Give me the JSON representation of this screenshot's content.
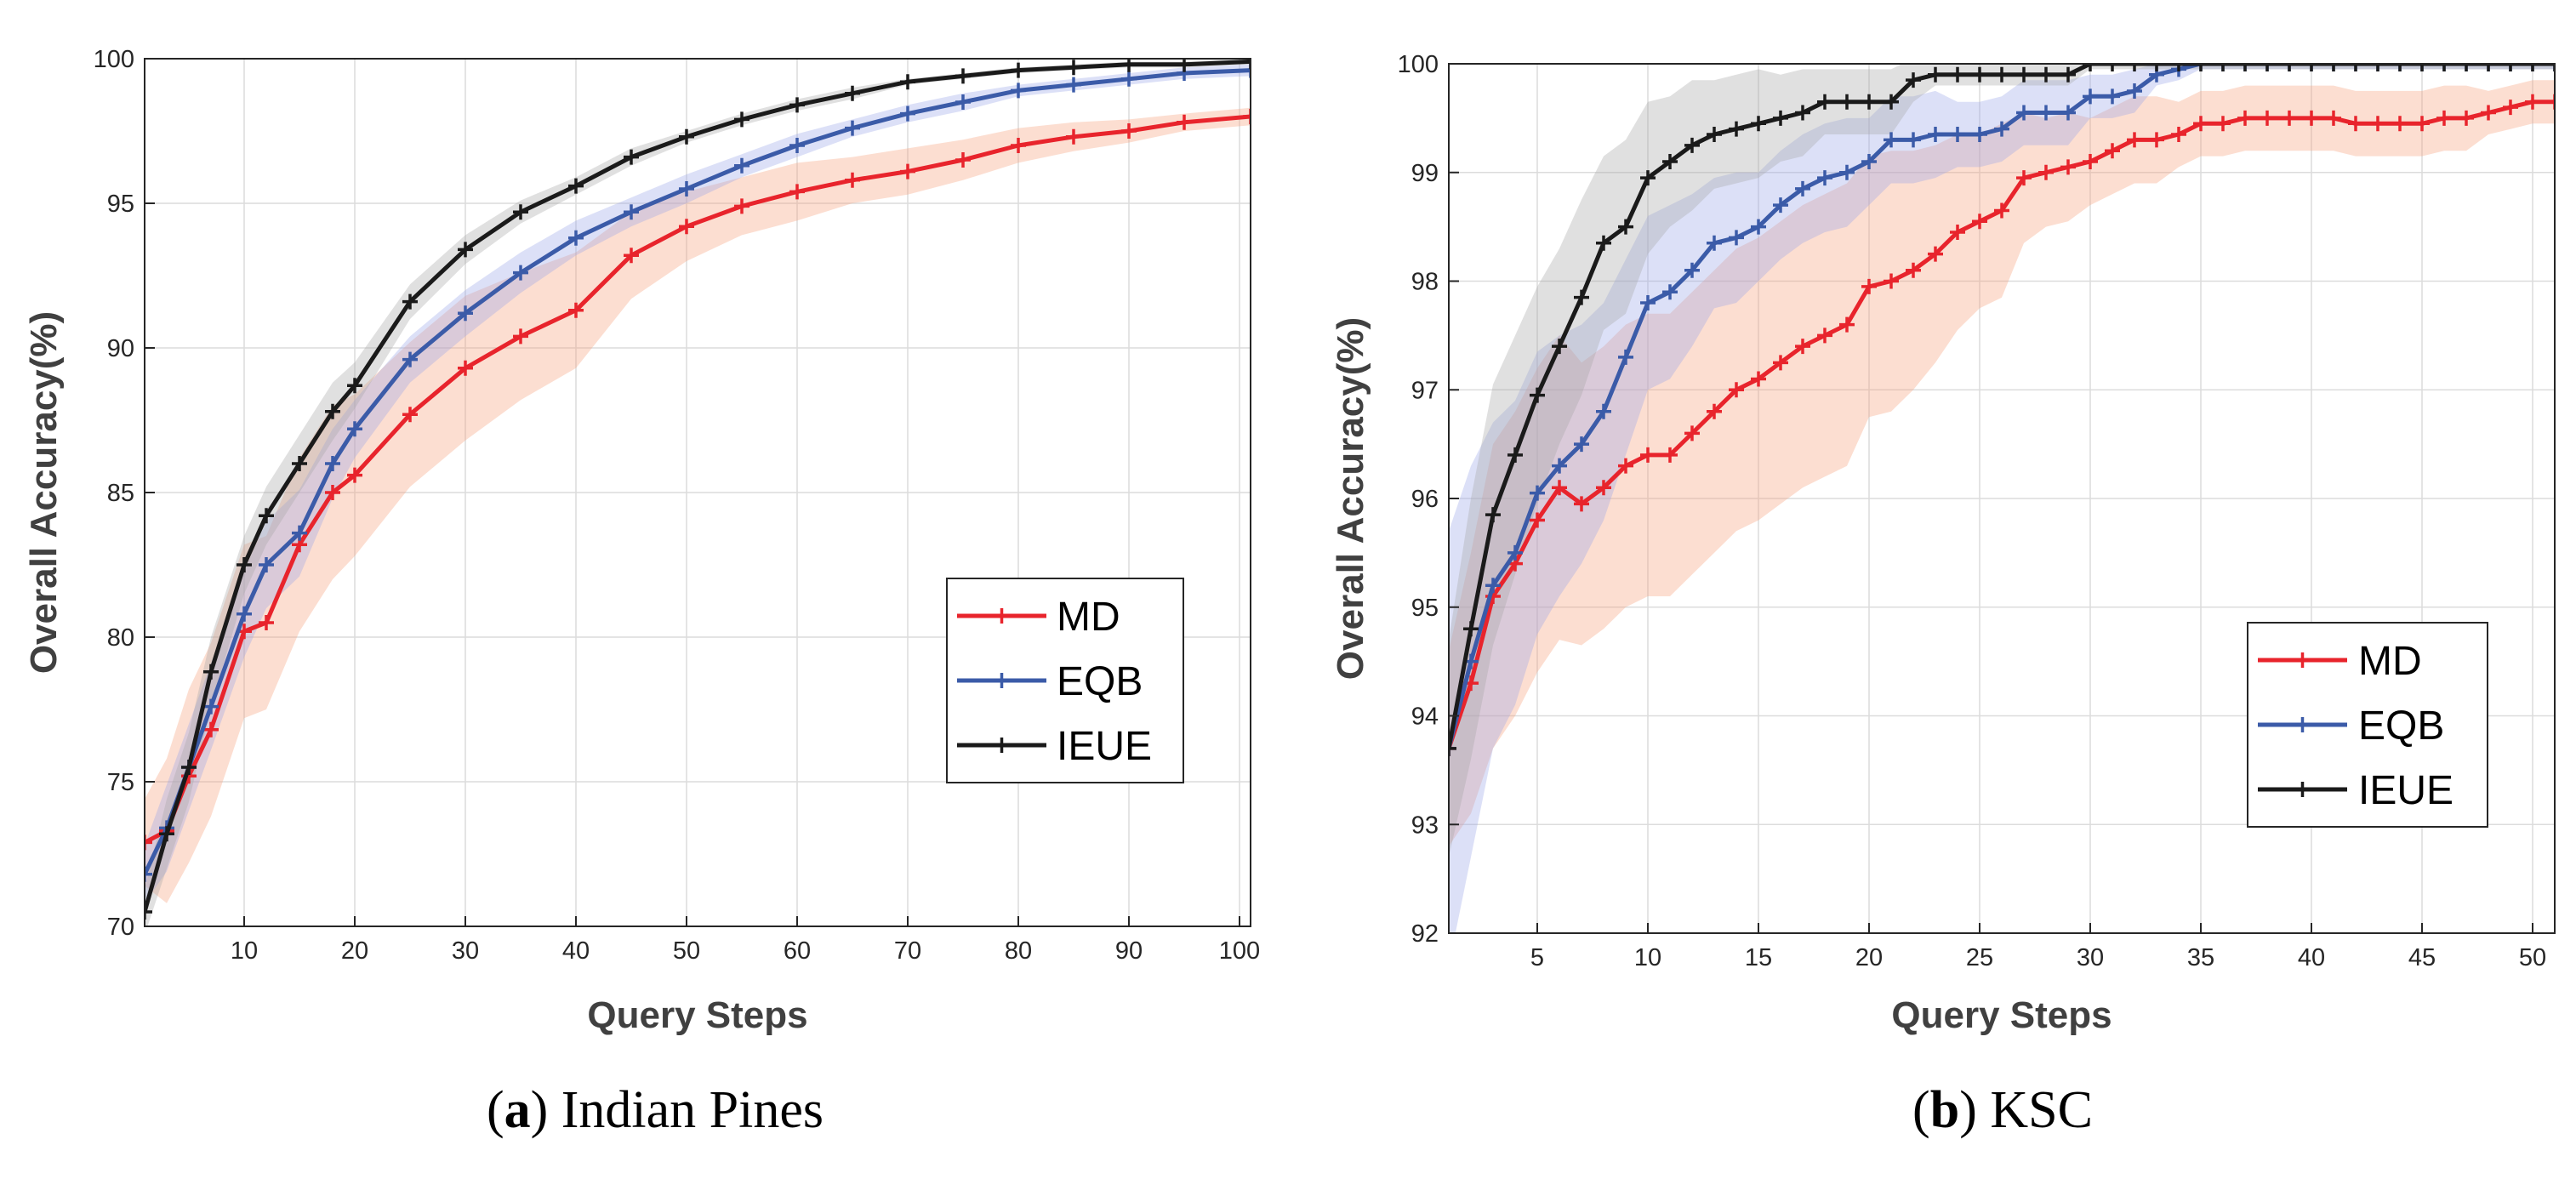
{
  "chart_data": [
    {
      "type": "line",
      "caption_letter": "a",
      "title": "Indian Pines",
      "xlabel": "Query Steps",
      "ylabel": "Overall Accuracy(%)",
      "xlim": [
        1,
        101
      ],
      "ylim": [
        70,
        100
      ],
      "xticks": [
        10,
        20,
        30,
        40,
        50,
        60,
        70,
        80,
        90,
        100
      ],
      "yticks": [
        70,
        75,
        80,
        85,
        90,
        95,
        100
      ],
      "grid": true,
      "legend_position": "bottom-right",
      "series": [
        {
          "name": "MD",
          "color": "#e8242c",
          "band_color": "#f7a07a",
          "x": [
            1,
            3,
            5,
            7,
            10,
            12,
            15,
            18,
            20,
            25,
            30,
            35,
            40,
            45,
            50,
            55,
            60,
            65,
            70,
            75,
            80,
            85,
            90,
            95,
            101
          ],
          "values": [
            72.9,
            73.3,
            75.2,
            76.8,
            80.2,
            80.5,
            83.2,
            85.0,
            85.6,
            87.7,
            89.3,
            90.4,
            91.3,
            93.2,
            94.2,
            94.9,
            95.4,
            95.8,
            96.1,
            96.5,
            97.0,
            97.3,
            97.5,
            97.8,
            98.0
          ],
          "band": [
            1.5,
            2.5,
            3.0,
            3.0,
            3.0,
            3.0,
            3.0,
            3.0,
            2.8,
            2.5,
            2.5,
            2.2,
            2.0,
            1.5,
            1.2,
            1.0,
            1.0,
            0.8,
            0.8,
            0.7,
            0.6,
            0.5,
            0.4,
            0.3,
            0.3
          ]
        },
        {
          "name": "EQB",
          "color": "#3b5ba8",
          "band_color": "#9ba6e8",
          "x": [
            1,
            3,
            5,
            7,
            10,
            12,
            15,
            18,
            20,
            25,
            30,
            35,
            40,
            45,
            50,
            55,
            60,
            65,
            70,
            75,
            80,
            85,
            90,
            95,
            101
          ],
          "values": [
            71.8,
            73.4,
            75.5,
            77.6,
            80.8,
            82.5,
            83.6,
            86.0,
            87.2,
            89.6,
            91.2,
            92.6,
            93.8,
            94.7,
            95.5,
            96.3,
            97.0,
            97.6,
            98.1,
            98.5,
            98.9,
            99.1,
            99.3,
            99.5,
            99.6
          ],
          "band": [
            1.0,
            1.5,
            1.5,
            1.5,
            1.5,
            1.5,
            1.5,
            1.2,
            1.0,
            0.8,
            0.8,
            0.7,
            0.6,
            0.5,
            0.5,
            0.4,
            0.4,
            0.3,
            0.3,
            0.3,
            0.2,
            0.2,
            0.2,
            0.2,
            0.2
          ]
        },
        {
          "name": "IEUE",
          "color": "#1a1a1a",
          "band_color": "#a6a6a6",
          "x": [
            1,
            3,
            5,
            7,
            10,
            12,
            15,
            18,
            20,
            25,
            30,
            35,
            40,
            45,
            50,
            55,
            60,
            65,
            70,
            75,
            80,
            85,
            90,
            95,
            101
          ],
          "values": [
            70.5,
            73.2,
            75.5,
            78.8,
            82.5,
            84.2,
            86.0,
            87.8,
            88.7,
            91.6,
            93.4,
            94.7,
            95.6,
            96.6,
            97.3,
            97.9,
            98.4,
            98.8,
            99.2,
            99.4,
            99.6,
            99.7,
            99.8,
            99.8,
            99.9
          ],
          "band": [
            0.8,
            1.2,
            1.2,
            1.2,
            1.0,
            1.0,
            1.0,
            1.0,
            0.8,
            0.6,
            0.5,
            0.4,
            0.3,
            0.3,
            0.2,
            0.2,
            0.2,
            0.2,
            0.1,
            0.1,
            0.1,
            0.1,
            0.1,
            0.1,
            0.1
          ]
        }
      ]
    },
    {
      "type": "line",
      "caption_letter": "b",
      "title": "KSC",
      "xlabel": "Query Steps",
      "ylabel": "Overall Accuracy(%)",
      "xlim": [
        1,
        51
      ],
      "ylim": [
        92,
        100
      ],
      "xticks": [
        5,
        10,
        15,
        20,
        25,
        30,
        35,
        40,
        45,
        50
      ],
      "yticks": [
        92,
        93,
        94,
        95,
        96,
        97,
        98,
        99,
        100
      ],
      "grid": true,
      "legend_position": "bottom-right",
      "series": [
        {
          "name": "MD",
          "color": "#e8242c",
          "band_color": "#f7a07a",
          "x": [
            1,
            2,
            3,
            4,
            5,
            6,
            7,
            8,
            9,
            10,
            11,
            12,
            13,
            14,
            15,
            16,
            17,
            18,
            19,
            20,
            21,
            22,
            23,
            24,
            25,
            26,
            27,
            28,
            29,
            30,
            31,
            32,
            33,
            34,
            35,
            36,
            37,
            38,
            39,
            40,
            41,
            42,
            43,
            44,
            45,
            46,
            47,
            48,
            49,
            50,
            51
          ],
          "values": [
            93.7,
            94.3,
            95.1,
            95.4,
            95.8,
            96.1,
            95.95,
            96.1,
            96.3,
            96.4,
            96.4,
            96.6,
            96.8,
            97.0,
            97.1,
            97.25,
            97.4,
            97.5,
            97.6,
            97.95,
            98.0,
            98.1,
            98.25,
            98.45,
            98.55,
            98.65,
            98.95,
            99.0,
            99.05,
            99.1,
            99.2,
            99.3,
            99.3,
            99.35,
            99.45,
            99.45,
            99.5,
            99.5,
            99.5,
            99.5,
            99.5,
            99.45,
            99.45,
            99.45,
            99.45,
            99.5,
            99.5,
            99.55,
            99.6,
            99.65,
            99.65
          ],
          "band": [
            0.9,
            1.2,
            1.4,
            1.4,
            1.4,
            1.4,
            1.3,
            1.3,
            1.3,
            1.3,
            1.3,
            1.3,
            1.3,
            1.3,
            1.3,
            1.3,
            1.3,
            1.3,
            1.3,
            1.2,
            1.2,
            1.1,
            1.0,
            0.9,
            0.8,
            0.8,
            0.6,
            0.5,
            0.5,
            0.4,
            0.4,
            0.4,
            0.4,
            0.3,
            0.3,
            0.3,
            0.3,
            0.3,
            0.3,
            0.3,
            0.3,
            0.3,
            0.3,
            0.3,
            0.3,
            0.3,
            0.3,
            0.2,
            0.2,
            0.2,
            0.2
          ]
        },
        {
          "name": "EQB",
          "color": "#3b5ba8",
          "band_color": "#9ba6e8",
          "x": [
            1,
            2,
            3,
            4,
            5,
            6,
            7,
            8,
            9,
            10,
            11,
            12,
            13,
            14,
            15,
            16,
            17,
            18,
            19,
            20,
            21,
            22,
            23,
            24,
            25,
            26,
            27,
            28,
            29,
            30,
            31,
            32,
            33,
            34,
            35,
            36,
            37,
            38,
            39,
            40,
            41,
            42,
            43,
            44,
            45,
            46,
            47,
            48,
            49,
            50,
            51
          ],
          "values": [
            93.7,
            94.5,
            95.2,
            95.5,
            96.05,
            96.3,
            96.5,
            96.8,
            97.3,
            97.8,
            97.9,
            98.1,
            98.35,
            98.4,
            98.5,
            98.7,
            98.85,
            98.95,
            99.0,
            99.1,
            99.3,
            99.3,
            99.35,
            99.35,
            99.35,
            99.4,
            99.55,
            99.55,
            99.55,
            99.7,
            99.7,
            99.75,
            99.9,
            99.95,
            100.0,
            100.0,
            100.0,
            100.0,
            100.0,
            100.0,
            100.0,
            100.0,
            100.0,
            100.0,
            100.0,
            100.0,
            100.0,
            100.0,
            100.0,
            100.0,
            100.0
          ],
          "band": [
            2.0,
            1.8,
            1.5,
            1.4,
            1.3,
            1.2,
            1.1,
            1.0,
            0.9,
            0.8,
            0.8,
            0.7,
            0.6,
            0.6,
            0.5,
            0.5,
            0.5,
            0.5,
            0.5,
            0.4,
            0.4,
            0.4,
            0.4,
            0.3,
            0.3,
            0.3,
            0.3,
            0.3,
            0.3,
            0.2,
            0.2,
            0.2,
            0.1,
            0.1,
            0.05,
            0.05,
            0.05,
            0.05,
            0.05,
            0.05,
            0.05,
            0.05,
            0.05,
            0.05,
            0.05,
            0.05,
            0.05,
            0.05,
            0.05,
            0.05,
            0.05
          ]
        },
        {
          "name": "IEUE",
          "color": "#1a1a1a",
          "band_color": "#a6a6a6",
          "x": [
            1,
            2,
            3,
            4,
            5,
            6,
            7,
            8,
            9,
            10,
            11,
            12,
            13,
            14,
            15,
            16,
            17,
            18,
            19,
            20,
            21,
            22,
            23,
            24,
            25,
            26,
            27,
            28,
            29,
            30,
            31,
            32,
            33,
            34,
            35,
            36,
            37,
            38,
            39,
            40,
            41,
            42,
            43,
            44,
            45,
            46,
            47,
            48,
            49,
            50,
            51
          ],
          "values": [
            93.7,
            94.8,
            95.85,
            96.4,
            96.95,
            97.4,
            97.85,
            98.35,
            98.5,
            98.95,
            99.1,
            99.25,
            99.35,
            99.4,
            99.45,
            99.5,
            99.55,
            99.65,
            99.65,
            99.65,
            99.65,
            99.85,
            99.9,
            99.9,
            99.9,
            99.9,
            99.9,
            99.9,
            99.9,
            100.0,
            100.0,
            100.0,
            100.0,
            100.0,
            100.0,
            100.0,
            100.0,
            100.0,
            100.0,
            100.0,
            100.0,
            100.0,
            100.0,
            100.0,
            100.0,
            100.0,
            100.0,
            100.0,
            100.0,
            100.0,
            100.0
          ],
          "band": [
            1.0,
            1.2,
            1.2,
            1.1,
            1.0,
            0.9,
            0.9,
            0.8,
            0.8,
            0.7,
            0.6,
            0.6,
            0.5,
            0.5,
            0.5,
            0.4,
            0.4,
            0.3,
            0.3,
            0.3,
            0.3,
            0.2,
            0.1,
            0.1,
            0.1,
            0.1,
            0.1,
            0.1,
            0.1,
            0.05,
            0.05,
            0.05,
            0.05,
            0.05,
            0.05,
            0.05,
            0.05,
            0.05,
            0.05,
            0.05,
            0.05,
            0.05,
            0.05,
            0.05,
            0.05,
            0.05,
            0.05,
            0.05,
            0.05,
            0.05,
            0.05
          ]
        }
      ]
    }
  ]
}
